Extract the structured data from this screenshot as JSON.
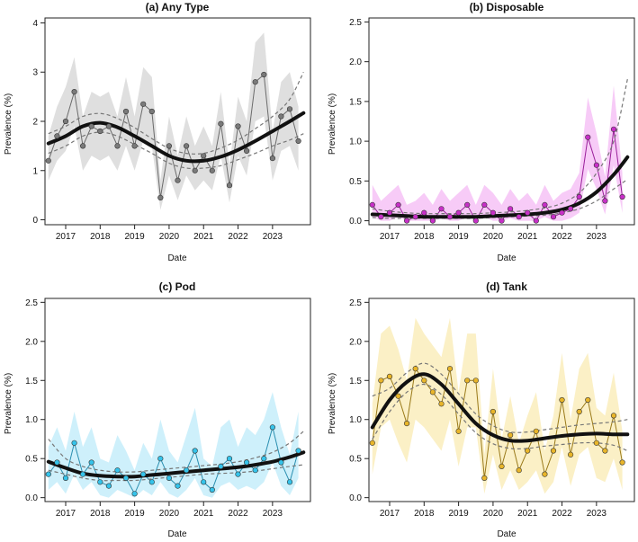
{
  "chart_data": [
    {
      "type": "line",
      "panel": "a",
      "title": "(a) Any Type",
      "xlabel": "Date",
      "ylabel": "Prevalence (%)",
      "xlim": [
        2016.4,
        2024.1
      ],
      "ylim": [
        -0.1,
        4.1
      ],
      "yticks": [
        "0",
        "1",
        "2",
        "3",
        "4"
      ],
      "ytick_values": [
        0,
        1,
        2,
        3,
        4
      ],
      "xticks": [
        "2017",
        "2018",
        "2019",
        "2020",
        "2021",
        "2022",
        "2023"
      ],
      "xtick_values": [
        2017,
        2018,
        2019,
        2020,
        2021,
        2022,
        2023
      ],
      "colors": {
        "series": "#6b6b6b",
        "point": "#7a7a7a",
        "band": "#dcdcdc",
        "trend": "#111111",
        "ci": "#777777"
      },
      "x": [
        2016.5,
        2016.75,
        2017.0,
        2017.25,
        2017.5,
        2017.75,
        2018.0,
        2018.25,
        2018.5,
        2018.75,
        2019.0,
        2019.25,
        2019.5,
        2019.75,
        2020.0,
        2020.25,
        2020.5,
        2020.75,
        2021.0,
        2021.25,
        2021.5,
        2021.75,
        2022.0,
        2022.25,
        2022.5,
        2022.75,
        2023.0,
        2023.25,
        2023.5,
        2023.75
      ],
      "values": [
        1.2,
        1.7,
        2.0,
        2.6,
        1.5,
        1.9,
        1.8,
        1.9,
        1.5,
        2.2,
        1.5,
        2.35,
        2.2,
        0.45,
        1.5,
        0.8,
        1.5,
        1.0,
        1.3,
        1.0,
        1.95,
        0.7,
        1.9,
        1.4,
        2.8,
        2.95,
        1.25,
        2.1,
        2.25,
        1.6
      ],
      "band_lower": [
        0.8,
        1.2,
        1.4,
        1.9,
        1.0,
        1.3,
        1.2,
        1.3,
        1.0,
        1.5,
        1.0,
        1.6,
        1.5,
        0.2,
        0.9,
        0.4,
        0.9,
        0.6,
        0.8,
        0.6,
        1.3,
        0.35,
        1.3,
        0.9,
        2.0,
        2.1,
        0.8,
        1.4,
        1.5,
        1.0
      ],
      "band_upper": [
        1.7,
        2.3,
        2.7,
        3.3,
        2.1,
        2.6,
        2.5,
        2.6,
        2.1,
        2.9,
        2.1,
        3.1,
        2.9,
        0.8,
        2.1,
        1.3,
        2.1,
        1.5,
        1.9,
        1.5,
        2.6,
        1.1,
        2.5,
        2.0,
        3.6,
        3.8,
        1.8,
        2.8,
        3.0,
        2.3
      ],
      "trend_x": [
        2016.5,
        2017.0,
        2017.5,
        2018.0,
        2018.5,
        2019.0,
        2019.5,
        2020.0,
        2020.5,
        2021.0,
        2021.5,
        2022.0,
        2022.5,
        2023.0,
        2023.5,
        2023.9
      ],
      "trend": [
        1.55,
        1.7,
        1.9,
        1.97,
        1.88,
        1.7,
        1.5,
        1.3,
        1.2,
        1.2,
        1.28,
        1.42,
        1.6,
        1.8,
        2.0,
        2.17
      ],
      "trend_lower": [
        1.35,
        1.5,
        1.7,
        1.78,
        1.7,
        1.53,
        1.35,
        1.15,
        1.05,
        1.05,
        1.1,
        1.22,
        1.35,
        1.5,
        1.62,
        1.75
      ],
      "trend_upper": [
        1.75,
        1.9,
        2.1,
        2.16,
        2.06,
        1.87,
        1.65,
        1.45,
        1.35,
        1.35,
        1.46,
        1.62,
        1.85,
        2.1,
        2.45,
        3.0
      ]
    },
    {
      "type": "line",
      "panel": "b",
      "title": "(b) Disposable",
      "xlabel": "Date",
      "ylabel": "Prevalence (%)",
      "xlim": [
        2016.4,
        2024.1
      ],
      "ylim": [
        -0.05,
        2.55
      ],
      "yticks": [
        "0.0",
        "0.5",
        "1.0",
        "1.5",
        "2.0",
        "2.5"
      ],
      "ytick_values": [
        0,
        0.5,
        1.0,
        1.5,
        2.0,
        2.5
      ],
      "xticks": [
        "2017",
        "2018",
        "2019",
        "2020",
        "2021",
        "2022",
        "2023"
      ],
      "xtick_values": [
        2017,
        2018,
        2019,
        2020,
        2021,
        2022,
        2023
      ],
      "colors": {
        "series": "#9a1f9a",
        "point": "#c72fc7",
        "band": "#f6c5f6",
        "trend": "#111111",
        "ci": "#777777"
      },
      "x": [
        2016.5,
        2016.75,
        2017.0,
        2017.25,
        2017.5,
        2017.75,
        2018.0,
        2018.25,
        2018.5,
        2018.75,
        2019.0,
        2019.25,
        2019.5,
        2019.75,
        2020.0,
        2020.25,
        2020.5,
        2020.75,
        2021.0,
        2021.25,
        2021.5,
        2021.75,
        2022.0,
        2022.25,
        2022.5,
        2022.75,
        2023.0,
        2023.25,
        2023.5,
        2023.75
      ],
      "values": [
        0.2,
        0.05,
        0.1,
        0.2,
        0.0,
        0.05,
        0.1,
        0.0,
        0.15,
        0.05,
        0.1,
        0.2,
        0.0,
        0.2,
        0.1,
        0.0,
        0.15,
        0.05,
        0.1,
        0.0,
        0.2,
        0.05,
        0.1,
        0.15,
        0.3,
        1.05,
        0.7,
        0.25,
        1.15,
        0.3
      ],
      "band_lower": [
        0.05,
        0.0,
        0.0,
        0.05,
        0.0,
        0.0,
        0.0,
        0.0,
        0.03,
        0.0,
        0.0,
        0.05,
        0.0,
        0.05,
        0.0,
        0.0,
        0.03,
        0.0,
        0.0,
        0.0,
        0.05,
        0.0,
        0.0,
        0.03,
        0.1,
        0.65,
        0.4,
        0.08,
        0.7,
        0.1
      ],
      "band_upper": [
        0.45,
        0.25,
        0.35,
        0.45,
        0.2,
        0.25,
        0.35,
        0.2,
        0.4,
        0.25,
        0.35,
        0.45,
        0.2,
        0.45,
        0.35,
        0.2,
        0.4,
        0.25,
        0.35,
        0.2,
        0.45,
        0.25,
        0.35,
        0.4,
        0.6,
        1.55,
        1.1,
        0.55,
        1.7,
        0.6
      ],
      "trend_x": [
        2016.5,
        2017.0,
        2017.5,
        2018.0,
        2018.5,
        2019.0,
        2019.5,
        2020.0,
        2020.5,
        2021.0,
        2021.5,
        2022.0,
        2022.5,
        2023.0,
        2023.5,
        2023.9
      ],
      "trend": [
        0.08,
        0.07,
        0.06,
        0.05,
        0.05,
        0.05,
        0.05,
        0.06,
        0.07,
        0.08,
        0.1,
        0.14,
        0.22,
        0.36,
        0.58,
        0.8
      ],
      "trend_lower": [
        0.04,
        0.03,
        0.03,
        0.03,
        0.03,
        0.03,
        0.03,
        0.04,
        0.05,
        0.06,
        0.07,
        0.1,
        0.15,
        0.25,
        0.4,
        0.52
      ],
      "trend_upper": [
        0.15,
        0.12,
        0.1,
        0.09,
        0.09,
        0.09,
        0.09,
        0.1,
        0.11,
        0.13,
        0.16,
        0.22,
        0.35,
        0.6,
        1.0,
        1.78
      ]
    },
    {
      "type": "line",
      "panel": "c",
      "title": "(c) Pod",
      "xlabel": "Date",
      "ylabel": "Prevalence (%)",
      "xlim": [
        2016.4,
        2024.1
      ],
      "ylim": [
        -0.05,
        2.55
      ],
      "yticks": [
        "0.0",
        "0.5",
        "1.0",
        "1.5",
        "2.0",
        "2.5"
      ],
      "ytick_values": [
        0,
        0.5,
        1.0,
        1.5,
        2.0,
        2.5
      ],
      "xticks": [
        "2017",
        "2018",
        "2019",
        "2020",
        "2021",
        "2022",
        "2023"
      ],
      "xtick_values": [
        2017,
        2018,
        2019,
        2020,
        2021,
        2022,
        2023
      ],
      "colors": {
        "series": "#2a8fb0",
        "point": "#35c3ea",
        "band": "#c9eefb",
        "trend": "#111111",
        "ci": "#777777"
      },
      "x": [
        2016.5,
        2016.75,
        2017.0,
        2017.25,
        2017.5,
        2017.75,
        2018.0,
        2018.25,
        2018.5,
        2018.75,
        2019.0,
        2019.25,
        2019.5,
        2019.75,
        2020.0,
        2020.25,
        2020.5,
        2020.75,
        2021.0,
        2021.25,
        2021.5,
        2021.75,
        2022.0,
        2022.25,
        2022.5,
        2022.75,
        2023.0,
        2023.25,
        2023.5,
        2023.75
      ],
      "values": [
        0.3,
        0.45,
        0.25,
        0.7,
        0.3,
        0.45,
        0.2,
        0.15,
        0.35,
        0.25,
        0.05,
        0.3,
        0.2,
        0.5,
        0.25,
        0.15,
        0.35,
        0.6,
        0.2,
        0.1,
        0.4,
        0.5,
        0.3,
        0.45,
        0.35,
        0.5,
        0.9,
        0.45,
        0.2,
        0.6
      ],
      "band_lower": [
        0.1,
        0.2,
        0.05,
        0.3,
        0.1,
        0.2,
        0.03,
        0.0,
        0.1,
        0.05,
        0.0,
        0.1,
        0.03,
        0.2,
        0.05,
        0.0,
        0.1,
        0.25,
        0.03,
        0.0,
        0.15,
        0.2,
        0.1,
        0.15,
        0.1,
        0.2,
        0.45,
        0.15,
        0.03,
        0.25
      ],
      "band_upper": [
        0.65,
        0.9,
        0.6,
        1.1,
        0.65,
        0.9,
        0.5,
        0.45,
        0.8,
        0.6,
        0.35,
        0.7,
        0.5,
        1.0,
        0.6,
        0.45,
        0.8,
        1.15,
        0.5,
        0.4,
        0.9,
        1.0,
        0.65,
        0.9,
        0.8,
        1.0,
        1.35,
        0.9,
        0.55,
        1.1
      ],
      "trend_x": [
        2016.5,
        2017.0,
        2017.5,
        2018.0,
        2018.5,
        2019.0,
        2019.5,
        2020.0,
        2020.5,
        2021.0,
        2021.5,
        2022.0,
        2022.5,
        2023.0,
        2023.5,
        2023.9
      ],
      "trend": [
        0.46,
        0.38,
        0.31,
        0.28,
        0.27,
        0.27,
        0.29,
        0.31,
        0.33,
        0.35,
        0.37,
        0.39,
        0.42,
        0.46,
        0.52,
        0.58
      ],
      "trend_lower": [
        0.35,
        0.3,
        0.25,
        0.22,
        0.22,
        0.22,
        0.24,
        0.26,
        0.28,
        0.3,
        0.31,
        0.32,
        0.34,
        0.37,
        0.4,
        0.42
      ],
      "trend_upper": [
        0.75,
        0.5,
        0.4,
        0.35,
        0.33,
        0.33,
        0.35,
        0.37,
        0.39,
        0.41,
        0.43,
        0.46,
        0.51,
        0.58,
        0.7,
        0.85
      ]
    },
    {
      "type": "line",
      "panel": "d",
      "title": "(d) Tank",
      "xlabel": "Date",
      "ylabel": "Prevalence (%)",
      "xlim": [
        2016.4,
        2024.1
      ],
      "ylim": [
        -0.05,
        2.55
      ],
      "yticks": [
        "0.0",
        "0.5",
        "1.0",
        "1.5",
        "2.0",
        "2.5"
      ],
      "ytick_values": [
        0,
        0.5,
        1.0,
        1.5,
        2.0,
        2.5
      ],
      "xticks": [
        "2017",
        "2018",
        "2019",
        "2020",
        "2021",
        "2022",
        "2023"
      ],
      "xtick_values": [
        2017,
        2018,
        2019,
        2020,
        2021,
        2022,
        2023
      ],
      "colors": {
        "series": "#9a7a1a",
        "point": "#e8b52a",
        "band": "#fbeec0",
        "trend": "#111111",
        "ci": "#777777"
      },
      "x": [
        2016.5,
        2016.75,
        2017.0,
        2017.25,
        2017.5,
        2017.75,
        2018.0,
        2018.25,
        2018.5,
        2018.75,
        2019.0,
        2019.25,
        2019.5,
        2019.75,
        2020.0,
        2020.25,
        2020.5,
        2020.75,
        2021.0,
        2021.25,
        2021.5,
        2021.75,
        2022.0,
        2022.25,
        2022.5,
        2022.75,
        2023.0,
        2023.25,
        2023.5,
        2023.75
      ],
      "values": [
        0.7,
        1.5,
        1.55,
        1.3,
        0.95,
        1.65,
        1.5,
        1.35,
        1.2,
        1.65,
        0.85,
        1.5,
        1.5,
        0.25,
        1.1,
        0.4,
        0.8,
        0.35,
        0.6,
        0.85,
        0.3,
        0.6,
        1.25,
        0.55,
        1.1,
        1.25,
        0.7,
        0.6,
        1.05,
        0.45
      ],
      "band_lower": [
        0.3,
        0.9,
        1.0,
        0.7,
        0.45,
        1.0,
        0.9,
        0.75,
        0.6,
        1.0,
        0.4,
        0.9,
        0.9,
        0.05,
        0.55,
        0.1,
        0.35,
        0.1,
        0.2,
        0.35,
        0.05,
        0.2,
        0.65,
        0.15,
        0.55,
        0.65,
        0.25,
        0.2,
        0.5,
        0.1
      ],
      "band_upper": [
        1.2,
        2.1,
        2.2,
        1.9,
        1.5,
        2.3,
        2.1,
        1.95,
        1.8,
        2.3,
        1.35,
        2.1,
        2.1,
        0.55,
        1.65,
        0.75,
        1.3,
        0.7,
        1.05,
        1.35,
        0.6,
        1.05,
        1.85,
        1.0,
        1.65,
        1.85,
        1.15,
        1.05,
        1.6,
        0.85
      ],
      "trend_x": [
        2016.5,
        2017.0,
        2017.5,
        2018.0,
        2018.5,
        2019.0,
        2019.5,
        2020.0,
        2020.5,
        2021.0,
        2021.5,
        2022.0,
        2022.5,
        2023.0,
        2023.5,
        2023.9
      ],
      "trend": [
        0.9,
        1.25,
        1.48,
        1.58,
        1.45,
        1.2,
        0.95,
        0.8,
        0.73,
        0.73,
        0.76,
        0.79,
        0.81,
        0.82,
        0.81,
        0.81
      ],
      "trend_lower": [
        0.75,
        1.1,
        1.35,
        1.45,
        1.32,
        1.07,
        0.83,
        0.69,
        0.63,
        0.63,
        0.66,
        0.68,
        0.7,
        0.7,
        0.67,
        0.6
      ],
      "trend_upper": [
        1.3,
        1.4,
        1.6,
        1.72,
        1.58,
        1.33,
        1.07,
        0.92,
        0.84,
        0.84,
        0.87,
        0.9,
        0.93,
        0.95,
        0.97,
        1.0
      ]
    }
  ]
}
